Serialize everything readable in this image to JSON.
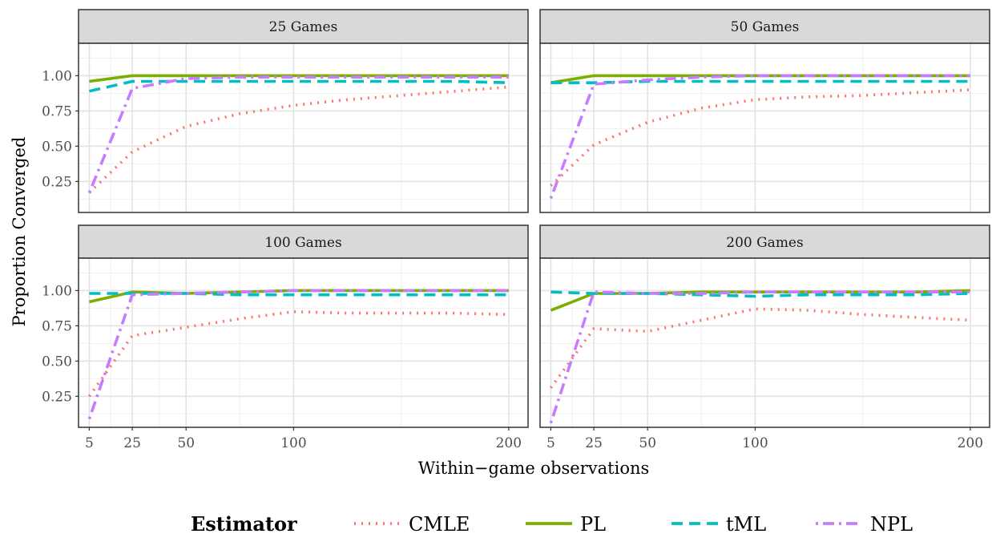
{
  "chart_data": {
    "type": "line",
    "xlabel": "Within−game observations",
    "ylabel": "Proportion Converged",
    "x_ticks": [
      5,
      25,
      50,
      100,
      200
    ],
    "y_ticks": [
      "0.25",
      "0.50",
      "0.75",
      "1.00"
    ],
    "xlim": [
      0,
      209
    ],
    "ylim": [
      0.03,
      1.23
    ],
    "legend": {
      "title": "Estimator",
      "position": "bottom",
      "entries": [
        "CMLE",
        "PL",
        "tML",
        "NPL"
      ]
    },
    "series_styles": [
      {
        "name": "CMLE",
        "color": "#F8766D",
        "dash": "dotted"
      },
      {
        "name": "PL",
        "color": "#7CAE00",
        "dash": "solid"
      },
      {
        "name": "tML",
        "color": "#00BFC4",
        "dash": "dashed"
      },
      {
        "name": "NPL",
        "color": "#C77CFF",
        "dash": "dotdash"
      }
    ],
    "x": [
      5,
      25,
      50,
      75,
      100,
      125,
      150,
      175,
      200
    ],
    "panels": [
      {
        "title": "25 Games",
        "series": [
          {
            "name": "CMLE",
            "values": [
              0.17,
              0.46,
              0.64,
              0.73,
              0.79,
              0.83,
              0.86,
              0.89,
              0.92
            ]
          },
          {
            "name": "PL",
            "values": [
              0.96,
              1.0,
              1.0,
              1.0,
              1.0,
              1.0,
              1.0,
              1.0,
              1.0
            ]
          },
          {
            "name": "tML",
            "values": [
              0.89,
              0.96,
              0.96,
              0.96,
              0.96,
              0.96,
              0.96,
              0.96,
              0.95
            ]
          },
          {
            "name": "NPL",
            "values": [
              0.17,
              0.91,
              0.98,
              0.99,
              0.99,
              0.99,
              0.99,
              0.99,
              0.99
            ]
          }
        ]
      },
      {
        "title": "50 Games",
        "series": [
          {
            "name": "CMLE",
            "values": [
              0.22,
              0.51,
              0.67,
              0.77,
              0.83,
              0.85,
              0.86,
              0.88,
              0.9
            ]
          },
          {
            "name": "PL",
            "values": [
              0.95,
              1.0,
              1.0,
              1.0,
              1.0,
              1.0,
              1.0,
              1.0,
              1.0
            ]
          },
          {
            "name": "tML",
            "values": [
              0.95,
              0.95,
              0.96,
              0.96,
              0.96,
              0.96,
              0.96,
              0.96,
              0.96
            ]
          },
          {
            "name": "NPL",
            "values": [
              0.13,
              0.94,
              0.97,
              0.99,
              1.0,
              1.0,
              1.0,
              1.0,
              1.0
            ]
          }
        ]
      },
      {
        "title": "100 Games",
        "series": [
          {
            "name": "CMLE",
            "values": [
              0.25,
              0.68,
              0.74,
              0.8,
              0.85,
              0.84,
              0.84,
              0.84,
              0.83
            ]
          },
          {
            "name": "PL",
            "values": [
              0.92,
              0.99,
              0.98,
              0.99,
              1.0,
              1.0,
              1.0,
              1.0,
              1.0
            ]
          },
          {
            "name": "tML",
            "values": [
              0.98,
              0.98,
              0.98,
              0.97,
              0.97,
              0.97,
              0.97,
              0.97,
              0.97
            ]
          },
          {
            "name": "NPL",
            "values": [
              0.09,
              0.97,
              0.98,
              0.99,
              1.0,
              1.0,
              1.0,
              1.0,
              1.0
            ]
          }
        ]
      },
      {
        "title": "200 Games",
        "series": [
          {
            "name": "CMLE",
            "values": [
              0.31,
              0.73,
              0.71,
              0.79,
              0.87,
              0.86,
              0.83,
              0.81,
              0.79
            ]
          },
          {
            "name": "PL",
            "values": [
              0.86,
              0.98,
              0.98,
              0.99,
              0.99,
              0.99,
              0.99,
              0.99,
              1.0
            ]
          },
          {
            "name": "tML",
            "values": [
              0.99,
              0.98,
              0.98,
              0.97,
              0.96,
              0.97,
              0.97,
              0.97,
              0.98
            ]
          },
          {
            "name": "NPL",
            "values": [
              0.06,
              0.99,
              0.98,
              0.98,
              0.99,
              0.99,
              0.99,
              0.99,
              0.99
            ]
          }
        ]
      }
    ]
  }
}
